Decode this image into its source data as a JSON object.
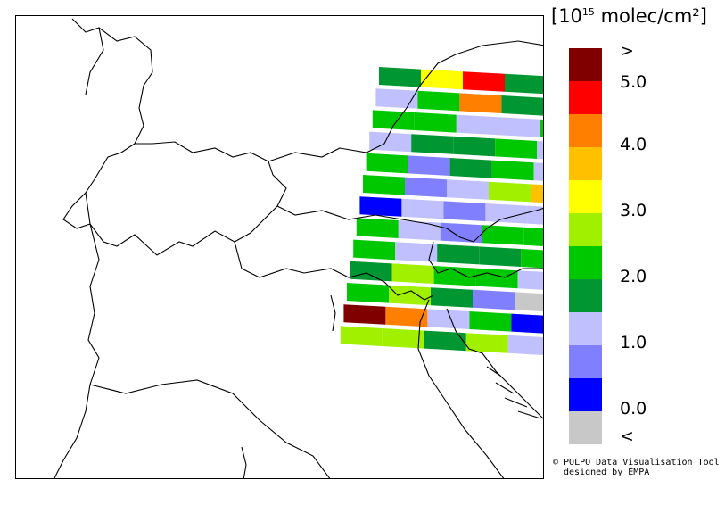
{
  "legend": {
    "unit_base": "[10",
    "unit_exp": "15",
    "unit_rest": " molec/cm²]",
    "swatches": [
      "#800000",
      "#ff0000",
      "#ff8000",
      "#ffc000",
      "#ffff00",
      "#a0f000",
      "#00c800",
      "#009632",
      "#c0c0ff",
      "#8080ff",
      "#0000ff",
      "#c8c8c8"
    ],
    "ticks": [
      ">",
      "5.0",
      "4.0",
      "3.0",
      "2.0",
      "1.0",
      "0.0",
      "<"
    ]
  },
  "credit": {
    "line1": "© POLPO Data Visualisation Tool",
    "line2": "designed by EMPA"
  },
  "pixels": [
    [
      "#009632",
      "#ffff00",
      "#ff0000",
      "#009632",
      "#ff0000"
    ],
    [
      "#c0c0ff",
      "#00c800",
      "#ff8000",
      "#009632",
      "#a0f000"
    ],
    [
      "#00c800",
      "#00c800",
      "#c0c0ff",
      "#c0c0ff",
      "#00c800"
    ],
    [
      "#c0c0ff",
      "#009632",
      "#009632",
      "#00c800",
      "#c0c0ff"
    ],
    [
      "#00c800",
      "#8080ff",
      "#009632",
      "#00c800",
      "#c0c0ff"
    ],
    [
      "#00c800",
      "#8080ff",
      "#c0c0ff",
      "#a0f000",
      "#ffc000"
    ],
    [
      "#0000ff",
      "#c0c0ff",
      "#8080ff",
      "#c0c0ff",
      "#c0c0ff"
    ],
    [
      "#00c800",
      "#c0c0ff",
      "#8080ff",
      "#00c800",
      "#00c800"
    ],
    [
      "#00c800",
      "#c0c0ff",
      "#009632",
      "#009632",
      "#00c800"
    ],
    [
      "#009632",
      "#a0f000",
      "#00c800",
      "#00c800",
      "#c0c0ff"
    ],
    [
      "#00c800",
      "#a0f000",
      "#009632",
      "#8080ff",
      "#c8c8c8"
    ],
    [
      "#800000",
      "#ff8000",
      "#c0c0ff",
      "#00c800",
      "#0000ff"
    ],
    [
      "#a0f000",
      "#a0f000",
      "#009632",
      "#a0f000",
      "#c0c0ff"
    ]
  ]
}
